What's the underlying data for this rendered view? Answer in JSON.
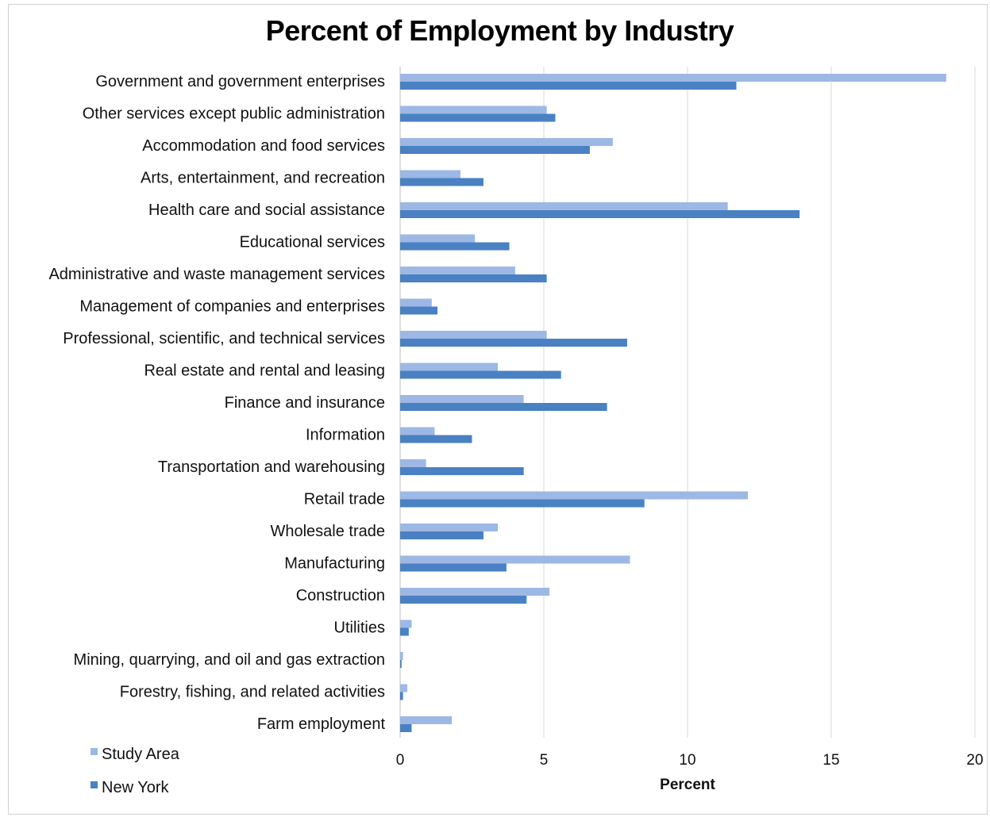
{
  "chart_data": {
    "type": "bar",
    "orientation": "horizontal",
    "title": "Percent of Employment by Industry",
    "xlabel": "Percent",
    "ylabel": "",
    "xlim": [
      0,
      20
    ],
    "xticks": [
      0,
      5,
      10,
      15,
      20
    ],
    "grid": "vertical",
    "legend_position": "bottom-left",
    "categories": [
      "Government and government enterprises",
      "Other services except public administration",
      "Accommodation and food services",
      "Arts, entertainment, and recreation",
      "Health care and social assistance",
      "Educational services",
      "Administrative and waste management services",
      "Management of companies and enterprises",
      "Professional, scientific, and technical services",
      "Real estate and rental and leasing",
      "Finance and insurance",
      "Information",
      "Transportation and warehousing",
      "Retail trade",
      "Wholesale trade",
      "Manufacturing",
      "Construction",
      "Utilities",
      "Mining, quarrying, and oil and gas extraction",
      "Forestry, fishing, and related activities",
      "Farm employment"
    ],
    "series": [
      {
        "name": "Study Area",
        "color": "#9db8e4",
        "values": [
          19.0,
          5.1,
          7.4,
          2.1,
          11.4,
          2.6,
          4.0,
          1.1,
          5.1,
          3.4,
          4.3,
          1.2,
          0.9,
          12.1,
          3.4,
          8.0,
          5.2,
          0.4,
          0.1,
          0.25,
          1.8
        ]
      },
      {
        "name": "New York",
        "color": "#4a81c2",
        "values": [
          11.7,
          5.4,
          6.6,
          2.9,
          13.9,
          3.8,
          5.1,
          1.3,
          7.9,
          5.6,
          7.2,
          2.5,
          4.3,
          8.5,
          2.9,
          3.7,
          4.4,
          0.3,
          0.05,
          0.1,
          0.4
        ]
      }
    ]
  }
}
